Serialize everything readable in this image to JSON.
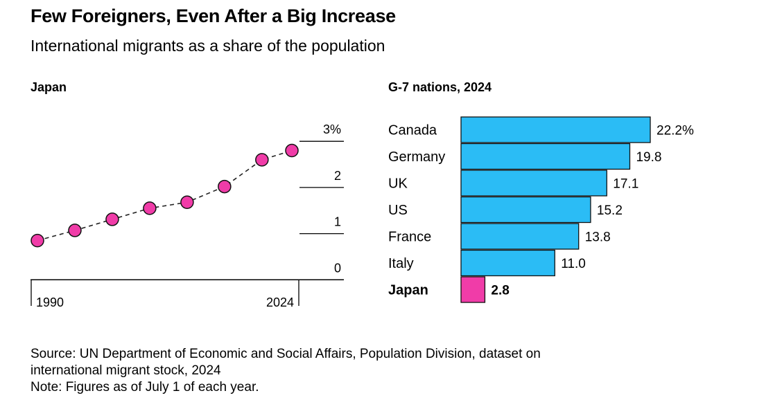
{
  "title": "Few Foreigners, Even After a Big Increase",
  "subtitle": "International migrants as a share of the population",
  "source": "Source: UN Department of Economic and Social Affairs, Population Division, dataset on",
  "source_cont": "international migrant stock, 2024",
  "note": "Note: Figures as of July 1 of each year.",
  "chart_data": [
    {
      "type": "line",
      "title": "Japan",
      "x": [
        1990,
        1995,
        2000,
        2005,
        2010,
        2015,
        2020,
        2024
      ],
      "y": [
        0.85,
        1.07,
        1.31,
        1.55,
        1.68,
        2.02,
        2.6,
        2.8
      ],
      "x_tick_labels": [
        "1990",
        "2024"
      ],
      "y_tick_labels": [
        "0",
        "1",
        "2",
        "3%"
      ],
      "ylim": [
        0,
        3
      ],
      "xlim": [
        1990,
        2024
      ],
      "grid": true,
      "marker_color": "#f03ca8",
      "line_style": "dashed"
    },
    {
      "type": "bar",
      "orientation": "horizontal",
      "title": "G-7 nations, 2024",
      "categories": [
        "Canada",
        "Germany",
        "UK",
        "US",
        "France",
        "Italy",
        "Japan"
      ],
      "values": [
        22.2,
        19.8,
        17.1,
        15.2,
        13.8,
        11.0,
        2.8
      ],
      "data_labels": [
        "22.2%",
        "19.8",
        "17.1",
        "15.2",
        "13.8",
        "11.0",
        "2.8"
      ],
      "colors": {
        "default": "#2bbcf5",
        "highlight": "#f03ca8"
      },
      "highlight": "Japan"
    }
  ]
}
